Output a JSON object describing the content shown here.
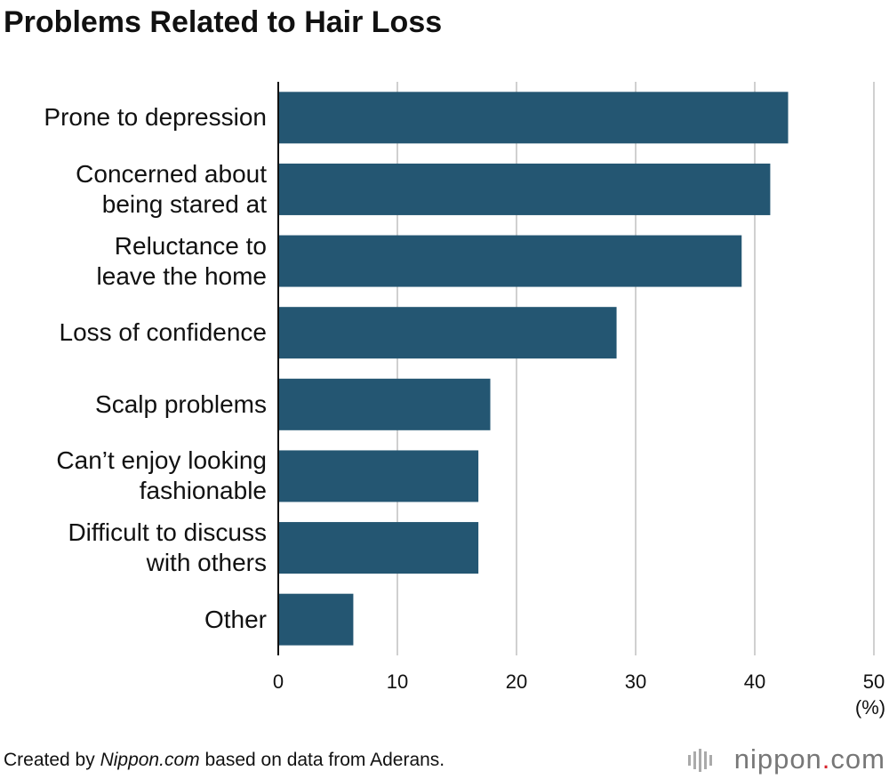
{
  "chart_data": {
    "type": "bar",
    "orientation": "horizontal",
    "title": "Problems Related to Hair Loss",
    "categories": [
      "Prone to depression",
      "Concerned about\nbeing stared at",
      "Reluctance to\nleave the home",
      "Loss of confidence",
      "Scalp problems",
      "Can’t enjoy looking\nfashionable",
      "Difficult to discuss\nwith others",
      "Other"
    ],
    "values": [
      42.8,
      41.3,
      38.9,
      28.4,
      17.8,
      16.8,
      16.8,
      6.3
    ],
    "color": "#245672",
    "xlim": [
      0,
      50
    ],
    "xticks": [
      0,
      10,
      20,
      30,
      40,
      50
    ],
    "x_unit": "(%)",
    "grid": true
  },
  "footer": [
    "Created by ",
    "Nippon.com",
    " based on data from Aderans."
  ],
  "logo": [
    "nippon",
    ".",
    "com"
  ]
}
